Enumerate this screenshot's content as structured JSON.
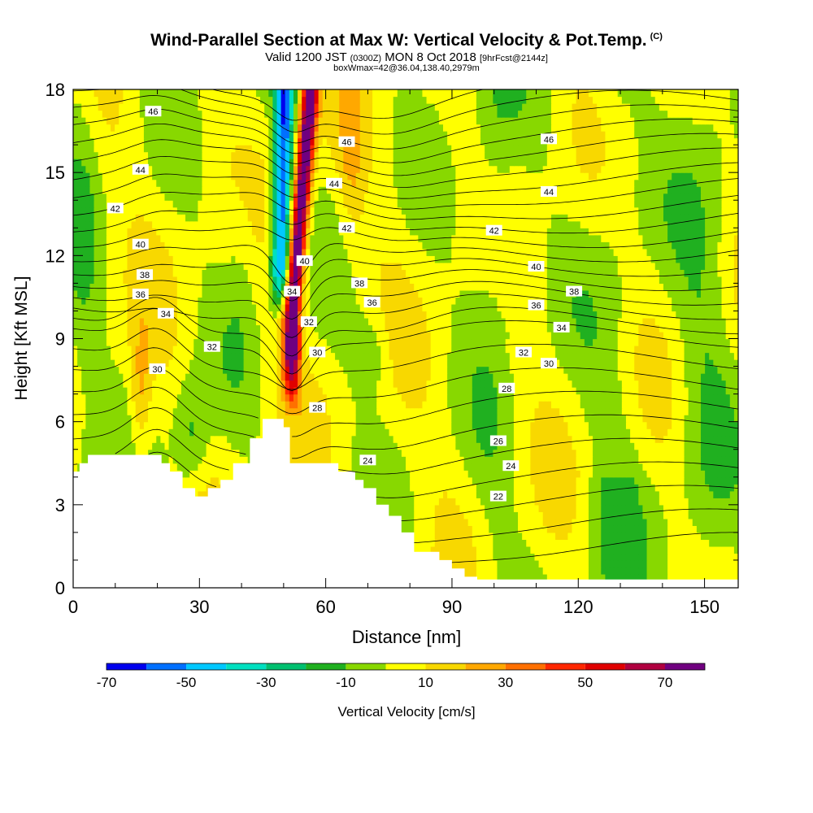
{
  "chart_data": {
    "type": "heatmap",
    "title": "Wind-Parallel Section at Max W: Vertical Velocity & Pot.Temp.",
    "title_mark": "(C)",
    "subtitle": {
      "prefix": "Valid 1200 JST",
      "utc": "(0300Z)",
      "date": "MON 8 Oct 2018",
      "fcst": "[9hrFcst@2144z]"
    },
    "subtitle2": "boxWmax=42@36.04,138.40,2979m",
    "xlabel": "Distance [nm]",
    "ylabel": "Height [Kft MSL]",
    "xlim": [
      0,
      158
    ],
    "ylim": [
      0,
      18
    ],
    "xticks": [
      0,
      30,
      60,
      90,
      120,
      150
    ],
    "yticks": [
      0,
      3,
      6,
      9,
      12,
      15,
      18
    ],
    "colorbar": {
      "label": "Vertical Velocity [cm/s]",
      "boundaries": [
        -70,
        -60,
        -50,
        -40,
        -30,
        -20,
        -10,
        0,
        10,
        20,
        30,
        40,
        50,
        60,
        70,
        80
      ],
      "colors": [
        "#0000ee",
        "#0070ff",
        "#00c8ff",
        "#00e0c0",
        "#00c070",
        "#20b020",
        "#88d800",
        "#ffff00",
        "#f8d800",
        "#ffa800",
        "#ff7000",
        "#ff2800",
        "#e00000",
        "#b00040",
        "#700080"
      ],
      "tick_labels": [
        -70,
        -50,
        -30,
        -10,
        10,
        30,
        50,
        70
      ]
    },
    "contour_labels": [
      {
        "text": "46",
        "x": 19,
        "y": 17.2
      },
      {
        "text": "46",
        "x": 65,
        "y": 16.1
      },
      {
        "text": "46",
        "x": 113,
        "y": 16.2
      },
      {
        "text": "44",
        "x": 16,
        "y": 15.1
      },
      {
        "text": "44",
        "x": 62,
        "y": 14.6
      },
      {
        "text": "44",
        "x": 113,
        "y": 14.3
      },
      {
        "text": "42",
        "x": 10,
        "y": 13.7
      },
      {
        "text": "42",
        "x": 65,
        "y": 13.0
      },
      {
        "text": "42",
        "x": 100,
        "y": 12.9
      },
      {
        "text": "40",
        "x": 16,
        "y": 12.4
      },
      {
        "text": "40",
        "x": 55,
        "y": 11.8
      },
      {
        "text": "40",
        "x": 110,
        "y": 11.6
      },
      {
        "text": "38",
        "x": 17,
        "y": 11.3
      },
      {
        "text": "38",
        "x": 68,
        "y": 11.0
      },
      {
        "text": "38",
        "x": 119,
        "y": 10.7
      },
      {
        "text": "36",
        "x": 16,
        "y": 10.6
      },
      {
        "text": "36",
        "x": 71,
        "y": 10.3
      },
      {
        "text": "36",
        "x": 110,
        "y": 10.2
      },
      {
        "text": "34",
        "x": 52,
        "y": 10.7
      },
      {
        "text": "34",
        "x": 22,
        "y": 9.9
      },
      {
        "text": "34",
        "x": 116,
        "y": 9.4
      },
      {
        "text": "32",
        "x": 56,
        "y": 9.6
      },
      {
        "text": "32",
        "x": 33,
        "y": 8.7
      },
      {
        "text": "32",
        "x": 107,
        "y": 8.5
      },
      {
        "text": "30",
        "x": 58,
        "y": 8.5
      },
      {
        "text": "30",
        "x": 20,
        "y": 7.9
      },
      {
        "text": "30",
        "x": 113,
        "y": 8.1
      },
      {
        "text": "28",
        "x": 58,
        "y": 6.5
      },
      {
        "text": "28",
        "x": 103,
        "y": 7.2
      },
      {
        "text": "26",
        "x": 101,
        "y": 5.3
      },
      {
        "text": "24",
        "x": 70,
        "y": 4.6
      },
      {
        "text": "24",
        "x": 104,
        "y": 4.4
      },
      {
        "text": "22",
        "x": 101,
        "y": 3.3
      }
    ],
    "isentrope_levels": [
      21,
      22,
      23,
      24,
      25,
      26,
      27,
      28,
      29,
      30,
      31,
      32,
      33,
      34,
      35,
      36,
      37,
      38,
      39,
      40,
      41,
      42,
      43,
      44,
      45,
      46,
      47
    ]
  }
}
